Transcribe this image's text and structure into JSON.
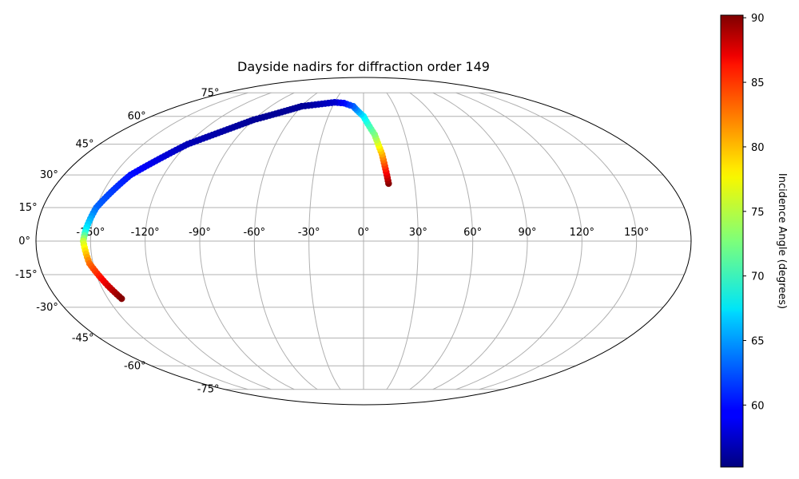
{
  "chart_data": {
    "type": "scatter",
    "title": "Dayside nadirs for diffraction order 149",
    "projection": "mollweide",
    "grid": true,
    "lon_ticks": [
      -150,
      -120,
      -90,
      -60,
      -30,
      0,
      30,
      60,
      90,
      120,
      150
    ],
    "lat_ticks": [
      75,
      60,
      45,
      30,
      15,
      0,
      -15,
      -30,
      -45,
      -60,
      -75
    ],
    "lon_tick_labels": [
      "-150°",
      "-120°",
      "-90°",
      "-60°",
      "-30°",
      "0°",
      "30°",
      "60°",
      "90°",
      "120°",
      "150°"
    ],
    "lat_tick_labels": [
      "75°",
      "60°",
      "45°",
      "30°",
      "15°",
      "0°",
      "-15°",
      "-30°",
      "-45°",
      "-60°",
      "-75°"
    ],
    "colorbar": {
      "label": "Incidence Angle (degrees)",
      "colormap": "jet",
      "vmin": 55.2,
      "vmax": 90.2,
      "ticks": [
        60,
        65,
        70,
        75,
        80,
        85,
        90
      ],
      "tick_labels": [
        "60",
        "65",
        "70",
        "75",
        "80",
        "85",
        "90"
      ],
      "location": "right"
    },
    "track_keypoints": {
      "description_fields": [
        "lon",
        "lat",
        "incidence"
      ],
      "points": [
        [
          14.7,
          26,
          90
        ],
        [
          14.0,
          30,
          87
        ],
        [
          12.0,
          40,
          80
        ],
        [
          8.0,
          50,
          73
        ],
        [
          0.0,
          60,
          68
        ],
        [
          -10.0,
          66,
          63
        ],
        [
          -20.0,
          68,
          60
        ],
        [
          -30.0,
          68.5,
          58
        ],
        [
          -60.0,
          66,
          56
        ],
        [
          -90.0,
          58,
          56
        ],
        [
          -120.0,
          45,
          57
        ],
        [
          -140.0,
          30,
          60
        ],
        [
          -150.0,
          15,
          63
        ],
        [
          -153.0,
          5,
          68
        ],
        [
          -154.0,
          0,
          75
        ],
        [
          -152.0,
          -10,
          82
        ],
        [
          -146.0,
          -20,
          87
        ],
        [
          -142.0,
          -26,
          90
        ]
      ]
    }
  }
}
